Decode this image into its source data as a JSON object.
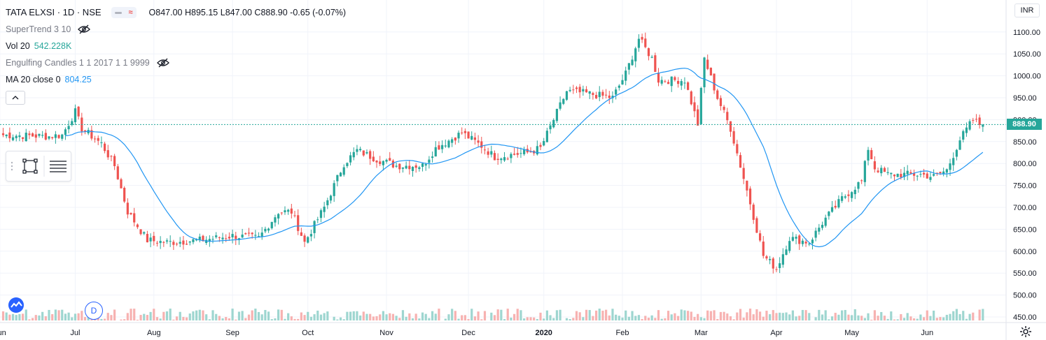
{
  "header": {
    "symbol": "TATA ELXSI · 1D · NSE",
    "open": "O847.00",
    "high": "H895.15",
    "low": "L847.00",
    "close": "C888.90",
    "change": "-0.65 (-0.07%)"
  },
  "indicators": [
    {
      "label": "SuperTrend 3 10",
      "value": ""
    },
    {
      "label": "Vol 20",
      "value": "542.228K"
    },
    {
      "label": "Engulfing Candles 1 1 2017 1 1 9999",
      "value": ""
    },
    {
      "label": "MA 20 close 0",
      "value": "804.25"
    }
  ],
  "price_axis": {
    "currency": "INR",
    "last_price": "888.90"
  },
  "interval_badge": "D",
  "colors": {
    "up": "#26a69a",
    "down": "#ef5350",
    "ma": "#2196f3",
    "vol_up": "#9ed6d0",
    "vol_down": "#f7b2b1"
  },
  "chart_data": {
    "type": "candlestick",
    "title": "TATA ELXSI · 1D · NSE",
    "y_ticks": [
      450,
      500,
      550,
      600,
      650,
      700,
      750,
      800,
      850,
      900,
      950,
      1000,
      1050,
      1100
    ],
    "ylim": [
      443,
      1115
    ],
    "x_ticks": [
      "Jun",
      "Jul",
      "Aug",
      "Sep",
      "Oct",
      "Nov",
      "Dec",
      "2020",
      "Feb",
      "Mar",
      "Apr",
      "May",
      "Jun"
    ],
    "last_close": 888.9,
    "moving_average": {
      "name": "MA 20 close 0",
      "last": 804.25
    },
    "price_anchors": [
      [
        0,
        865
      ],
      [
        14,
        862
      ],
      [
        18,
        865
      ],
      [
        22,
        918
      ],
      [
        24,
        880
      ],
      [
        30,
        845
      ],
      [
        34,
        795
      ],
      [
        38,
        690
      ],
      [
        44,
        625
      ],
      [
        50,
        620
      ],
      [
        60,
        625
      ],
      [
        70,
        635
      ],
      [
        78,
        630
      ],
      [
        84,
        690
      ],
      [
        88,
        690
      ],
      [
        92,
        620
      ],
      [
        98,
        700
      ],
      [
        104,
        800
      ],
      [
        108,
        830
      ],
      [
        114,
        810
      ],
      [
        120,
        795
      ],
      [
        128,
        795
      ],
      [
        132,
        835
      ],
      [
        140,
        870
      ],
      [
        146,
        840
      ],
      [
        150,
        815
      ],
      [
        160,
        825
      ],
      [
        164,
        835
      ],
      [
        168,
        900
      ],
      [
        172,
        965
      ],
      [
        178,
        960
      ],
      [
        186,
        950
      ],
      [
        190,
        1005
      ],
      [
        194,
        1085
      ],
      [
        198,
        1040
      ],
      [
        200,
        990
      ],
      [
        208,
        990
      ],
      [
        212,
        890
      ],
      [
        214,
        1040
      ],
      [
        218,
        950
      ],
      [
        222,
        880
      ],
      [
        228,
        710
      ],
      [
        232,
        590
      ],
      [
        236,
        560
      ],
      [
        240,
        630
      ],
      [
        246,
        620
      ],
      [
        250,
        665
      ],
      [
        256,
        720
      ],
      [
        262,
        760
      ],
      [
        264,
        835
      ],
      [
        266,
        790
      ],
      [
        270,
        775
      ],
      [
        280,
        775
      ],
      [
        284,
        770
      ],
      [
        288,
        785
      ],
      [
        292,
        855
      ],
      [
        296,
        900
      ],
      [
        298,
        889
      ]
    ],
    "volume_spikes": [
      [
        35,
        624
      ],
      [
        100,
        500
      ],
      [
        134,
        538
      ],
      [
        148,
        533
      ],
      [
        171,
        517
      ],
      [
        247,
        502
      ],
      [
        297,
        508
      ]
    ]
  }
}
